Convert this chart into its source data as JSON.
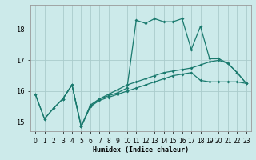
{
  "xlabel": "Humidex (Indice chaleur)",
  "bg_color": "#cceaea",
  "grid_color": "#aacccc",
  "line_color": "#1a7a6e",
  "xlim": [
    -0.5,
    23.5
  ],
  "ylim": [
    14.7,
    18.8
  ],
  "yticks": [
    15,
    16,
    17,
    18
  ],
  "xticks": [
    0,
    1,
    2,
    3,
    4,
    5,
    6,
    7,
    8,
    9,
    10,
    11,
    12,
    13,
    14,
    15,
    16,
    17,
    18,
    19,
    20,
    21,
    22,
    23
  ],
  "line1_x": [
    0,
    1,
    2,
    3,
    4,
    5,
    6,
    7,
    8,
    9,
    10,
    11,
    12,
    13,
    14,
    15,
    16,
    17,
    18,
    19,
    20,
    21,
    22,
    23
  ],
  "line1_y": [
    15.9,
    15.1,
    15.45,
    15.75,
    16.2,
    14.85,
    15.5,
    15.75,
    15.85,
    15.95,
    16.1,
    18.3,
    18.2,
    18.35,
    18.25,
    18.25,
    18.35,
    17.35,
    18.1,
    17.05,
    17.05,
    16.9,
    16.6,
    16.25
  ],
  "line2_x": [
    0,
    1,
    2,
    3,
    4,
    5,
    6,
    7,
    8,
    9,
    10,
    11,
    12,
    13,
    14,
    15,
    16,
    17,
    18,
    19,
    20,
    21,
    22,
    23
  ],
  "line2_y": [
    15.9,
    15.1,
    15.45,
    15.75,
    16.2,
    14.85,
    15.55,
    15.75,
    15.9,
    16.05,
    16.2,
    16.3,
    16.4,
    16.5,
    16.6,
    16.65,
    16.7,
    16.75,
    16.85,
    16.95,
    17.0,
    16.9,
    16.6,
    16.25
  ],
  "line3_x": [
    3,
    4,
    5,
    6,
    7,
    8,
    9,
    10,
    11,
    12,
    13,
    14,
    15,
    16,
    17,
    18,
    19,
    20,
    21,
    22,
    23
  ],
  "line3_y": [
    15.75,
    16.2,
    14.85,
    15.5,
    15.7,
    15.8,
    15.9,
    16.0,
    16.1,
    16.2,
    16.3,
    16.4,
    16.5,
    16.55,
    16.6,
    16.35,
    16.3,
    16.3,
    16.3,
    16.3,
    16.25
  ]
}
